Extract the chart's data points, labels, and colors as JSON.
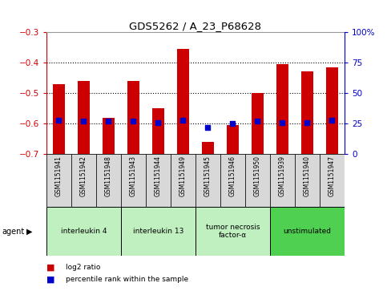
{
  "title": "GDS5262 / A_23_P68628",
  "samples": [
    "GSM1151941",
    "GSM1151942",
    "GSM1151948",
    "GSM1151943",
    "GSM1151944",
    "GSM1151949",
    "GSM1151945",
    "GSM1151946",
    "GSM1151950",
    "GSM1151939",
    "GSM1151940",
    "GSM1151947"
  ],
  "log2_ratio": [
    -0.47,
    -0.46,
    -0.58,
    -0.46,
    -0.55,
    -0.355,
    -0.66,
    -0.605,
    -0.5,
    -0.405,
    -0.43,
    -0.415
  ],
  "percentile_rank": [
    28,
    27,
    27,
    27,
    26,
    28,
    22,
    25,
    27,
    26,
    26,
    28
  ],
  "ylim_left": [
    -0.7,
    -0.3
  ],
  "ylim_right": [
    0,
    100
  ],
  "yticks_left": [
    -0.7,
    -0.6,
    -0.5,
    -0.4,
    -0.3
  ],
  "yticks_right": [
    0,
    25,
    50,
    75,
    100
  ],
  "groups": [
    {
      "label": "interleukin 4",
      "start": 0,
      "end": 3,
      "color": "#c0f0c0"
    },
    {
      "label": "interleukin 13",
      "start": 3,
      "end": 6,
      "color": "#c0f0c0"
    },
    {
      "label": "tumor necrosis\nfactor-α",
      "start": 6,
      "end": 9,
      "color": "#c0f0c0"
    },
    {
      "label": "unstimulated",
      "start": 9,
      "end": 12,
      "color": "#50d050"
    }
  ],
  "bar_color": "#cc0000",
  "dot_color": "#0000cc",
  "axis_color_left": "#cc0000",
  "axis_color_right": "#0000cc",
  "grid_color": "#000000",
  "bg_color": "#ffffff",
  "sample_bg_color": "#d8d8d8",
  "legend_items": [
    {
      "color": "#cc0000",
      "label": "log2 ratio"
    },
    {
      "color": "#0000cc",
      "label": "percentile rank within the sample"
    }
  ]
}
